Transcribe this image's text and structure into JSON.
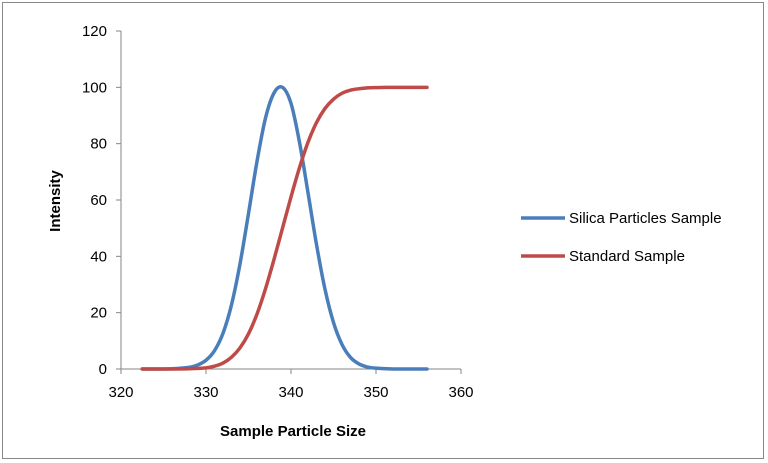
{
  "chart_data": {
    "type": "line",
    "title": "",
    "xlabel": "Sample Particle Size",
    "ylabel": "Intensity",
    "xlim": [
      320,
      360
    ],
    "ylim": [
      0,
      120
    ],
    "x_ticks": [
      320,
      330,
      340,
      350,
      360
    ],
    "y_ticks": [
      0,
      20,
      40,
      60,
      80,
      100,
      120
    ],
    "grid": false,
    "legend_position": "right",
    "series": [
      {
        "name": "Silica Particles Sample",
        "color": "#4a7ebb",
        "x": [
          322.5,
          324,
          326,
          328,
          329,
          330,
          331,
          332,
          333,
          334,
          335,
          336,
          337,
          338,
          339,
          340,
          341,
          342,
          343,
          344,
          345,
          346,
          347,
          348,
          349,
          350,
          352,
          354,
          356
        ],
        "y": [
          0,
          0,
          0.1,
          0.6,
          1.4,
          3.1,
          6.5,
          12.7,
          22.8,
          37.3,
          55.2,
          73.7,
          89.1,
          98.0,
          100,
          94.3,
          80.5,
          62.6,
          44.2,
          28.3,
          16.5,
          8.7,
          4.1,
          1.8,
          0.7,
          0.3,
          0,
          0,
          0
        ]
      },
      {
        "name": "Standard Sample",
        "color": "#be4b48",
        "x": [
          322.5,
          325,
          328,
          330,
          331,
          332,
          333,
          334,
          335,
          336,
          337,
          338,
          339,
          340,
          341,
          342,
          343,
          344,
          345,
          346,
          347,
          348,
          349,
          350,
          352,
          354,
          356
        ],
        "y": [
          0,
          0,
          0.1,
          0.4,
          1.0,
          2.1,
          4.2,
          7.5,
          12.5,
          19.5,
          28.5,
          38.9,
          50.0,
          61.1,
          71.5,
          80.5,
          87.5,
          92.5,
          95.8,
          97.9,
          99.0,
          99.5,
          99.8,
          99.9,
          100,
          100,
          100
        ]
      }
    ]
  }
}
